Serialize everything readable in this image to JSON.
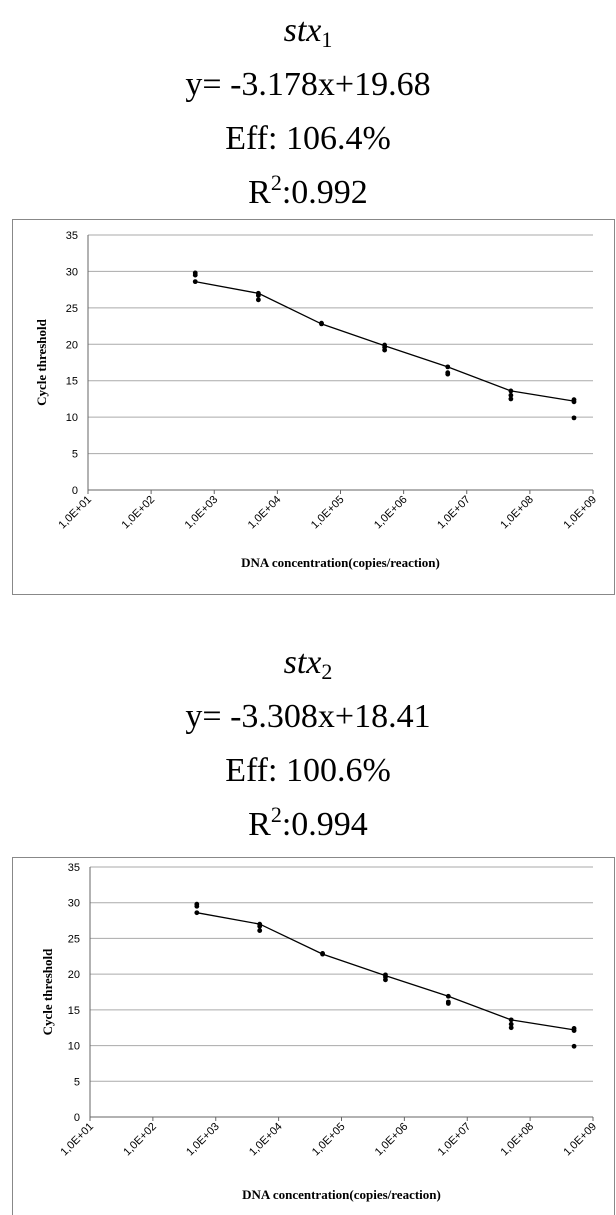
{
  "panels": [
    {
      "gene_base": "stx",
      "gene_sub": "1",
      "equation": "y= -3.178x+19.68",
      "efficiency": "Eff: 106.4%",
      "r2_base": "R",
      "r2_sup": "2",
      "r2_value": ":0.992"
    },
    {
      "gene_base": "stx",
      "gene_sub": "2",
      "equation": "y= -3.308x+18.41",
      "efficiency": "Eff: 100.6%",
      "r2_base": "R",
      "r2_sup": "2",
      "r2_value": ":0.994"
    }
  ],
  "chart_data": [
    {
      "type": "scatter",
      "title": "",
      "xlabel": "DNA concentration(copies/reaction)",
      "ylabel": "Cycle threshold",
      "x_scale": "log",
      "xlim": [
        10,
        1000000000
      ],
      "ylim": [
        0,
        35
      ],
      "x_ticks": [
        "1,0E+01",
        "1,0E+02",
        "1,0E+03",
        "1,0E+04",
        "1,0E+05",
        "1,0E+06",
        "1,0E+07",
        "1,0E+08",
        "1,0E+09"
      ],
      "y_ticks": [
        0,
        5,
        10,
        15,
        20,
        25,
        30,
        35
      ],
      "grid": "horizontal",
      "legend": "none",
      "colors": {
        "points": "#000000",
        "line": "#000000",
        "grid": "#aaaaaa",
        "border": "#888888"
      },
      "points": [
        {
          "x": 500,
          "y": 29.8
        },
        {
          "x": 500,
          "y": 29.5
        },
        {
          "x": 500,
          "y": 28.6
        },
        {
          "x": 5000,
          "y": 27.0
        },
        {
          "x": 5000,
          "y": 26.7
        },
        {
          "x": 5000,
          "y": 26.1
        },
        {
          "x": 50000,
          "y": 22.9
        },
        {
          "x": 50000,
          "y": 22.8
        },
        {
          "x": 500000,
          "y": 19.9
        },
        {
          "x": 500000,
          "y": 19.6
        },
        {
          "x": 500000,
          "y": 19.2
        },
        {
          "x": 5000000,
          "y": 16.9
        },
        {
          "x": 5000000,
          "y": 16.1
        },
        {
          "x": 5000000,
          "y": 15.9
        },
        {
          "x": 50000000,
          "y": 13.6
        },
        {
          "x": 50000000,
          "y": 13.0
        },
        {
          "x": 50000000,
          "y": 12.5
        },
        {
          "x": 500000000,
          "y": 12.4
        },
        {
          "x": 500000000,
          "y": 12.1
        },
        {
          "x": 500000000,
          "y": 9.9
        }
      ],
      "line": [
        {
          "x": 500,
          "y": 28.6
        },
        {
          "x": 5000,
          "y": 27.0
        },
        {
          "x": 50000,
          "y": 22.8
        },
        {
          "x": 500000,
          "y": 19.8
        },
        {
          "x": 5000000,
          "y": 16.9
        },
        {
          "x": 50000000,
          "y": 13.6
        },
        {
          "x": 500000000,
          "y": 12.2
        }
      ]
    },
    {
      "type": "scatter",
      "title": "",
      "xlabel": "DNA concentration(copies/reaction)",
      "ylabel": "Cycle threshold",
      "x_scale": "log",
      "xlim": [
        10,
        1000000000
      ],
      "ylim": [
        0,
        35
      ],
      "x_ticks": [
        "1,0E+01",
        "1,0E+02",
        "1,0E+03",
        "1,0E+04",
        "1,0E+05",
        "1,0E+06",
        "1,0E+07",
        "1,0E+08",
        "1,0E+09"
      ],
      "y_ticks": [
        0,
        5,
        10,
        15,
        20,
        25,
        30,
        35
      ],
      "grid": "horizontal",
      "legend": "none",
      "colors": {
        "points": "#000000",
        "line": "#000000",
        "grid": "#aaaaaa",
        "border": "#888888"
      },
      "points": [
        {
          "x": 500,
          "y": 29.8
        },
        {
          "x": 500,
          "y": 29.5
        },
        {
          "x": 500,
          "y": 28.6
        },
        {
          "x": 5000,
          "y": 27.0
        },
        {
          "x": 5000,
          "y": 26.7
        },
        {
          "x": 5000,
          "y": 26.1
        },
        {
          "x": 50000,
          "y": 22.9
        },
        {
          "x": 50000,
          "y": 22.8
        },
        {
          "x": 500000,
          "y": 19.9
        },
        {
          "x": 500000,
          "y": 19.6
        },
        {
          "x": 500000,
          "y": 19.2
        },
        {
          "x": 5000000,
          "y": 16.9
        },
        {
          "x": 5000000,
          "y": 16.1
        },
        {
          "x": 5000000,
          "y": 15.9
        },
        {
          "x": 50000000,
          "y": 13.6
        },
        {
          "x": 50000000,
          "y": 13.0
        },
        {
          "x": 50000000,
          "y": 12.5
        },
        {
          "x": 500000000,
          "y": 12.4
        },
        {
          "x": 500000000,
          "y": 12.1
        },
        {
          "x": 500000000,
          "y": 9.9
        }
      ],
      "line": [
        {
          "x": 500,
          "y": 28.6
        },
        {
          "x": 5000,
          "y": 27.0
        },
        {
          "x": 50000,
          "y": 22.8
        },
        {
          "x": 500000,
          "y": 19.8
        },
        {
          "x": 5000000,
          "y": 16.9
        },
        {
          "x": 50000000,
          "y": 13.6
        },
        {
          "x": 500000000,
          "y": 12.2
        }
      ]
    }
  ]
}
